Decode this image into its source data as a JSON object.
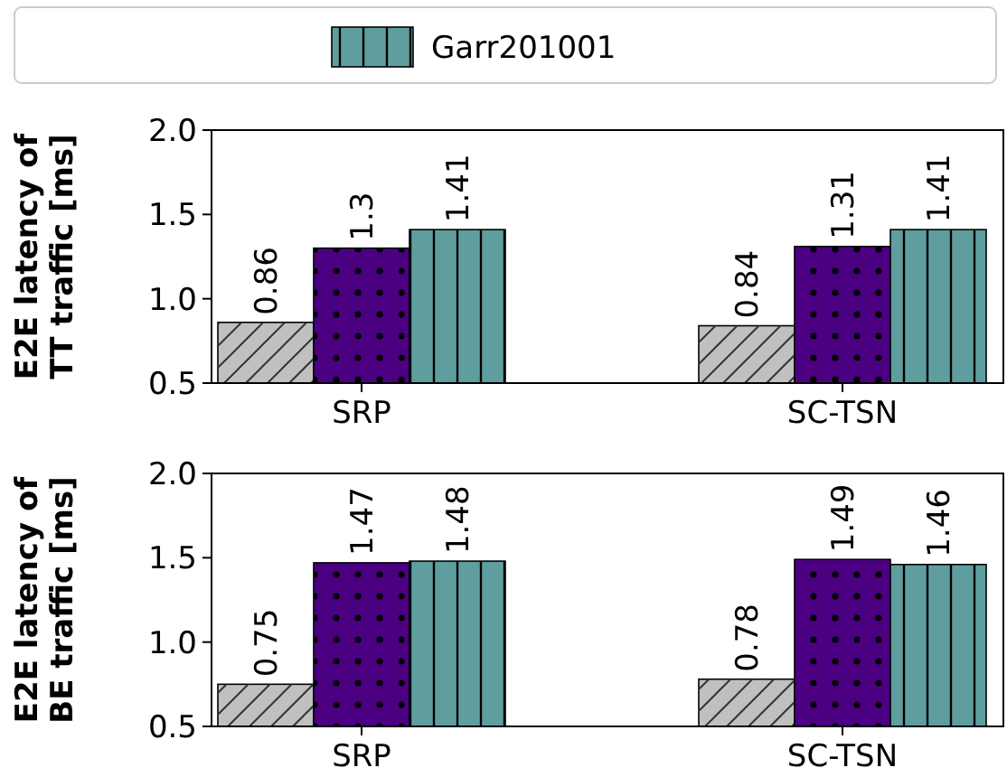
{
  "chart_data": [
    {
      "type": "bar",
      "ylabel": "E2E latency of\nTT traffic [ms]",
      "categories": [
        "SRP",
        "SC-TSN"
      ],
      "series": [
        {
          "color": "#c0c0c0",
          "values": [
            0.86,
            0.84
          ]
        },
        {
          "color": "#4b0082",
          "values": [
            1.3,
            1.31
          ]
        },
        {
          "name": "Garr201001",
          "color": "#5f9e9e",
          "values": [
            1.41,
            1.41
          ]
        }
      ],
      "ylim": [
        0.5,
        2.0
      ],
      "yticks": [
        {
          "value": 0.5,
          "label": "0.5"
        },
        {
          "value": 1.0,
          "label": "1.0"
        },
        {
          "value": 1.5,
          "label": "1.5"
        },
        {
          "value": 2.0,
          "label": "2.0"
        }
      ],
      "data_labels": true,
      "legend": "top",
      "grid": false
    },
    {
      "type": "bar",
      "ylabel": "E2E latency of\nBE traffic [ms]",
      "categories": [
        "SRP",
        "SC-TSN"
      ],
      "series": [
        {
          "color": "#c0c0c0",
          "values": [
            0.75,
            0.78
          ]
        },
        {
          "color": "#4b0082",
          "values": [
            1.47,
            1.49
          ]
        },
        {
          "name": "Garr201001",
          "color": "#5f9e9e",
          "values": [
            1.48,
            1.46
          ]
        }
      ],
      "ylim": [
        0.5,
        2.0
      ],
      "yticks": [
        {
          "value": 0.5,
          "label": "0.5"
        },
        {
          "value": 1.0,
          "label": "1.0"
        },
        {
          "value": 1.5,
          "label": "1.5"
        },
        {
          "value": 2.0,
          "label": "2.0"
        }
      ],
      "data_labels": true,
      "grid": false
    }
  ]
}
